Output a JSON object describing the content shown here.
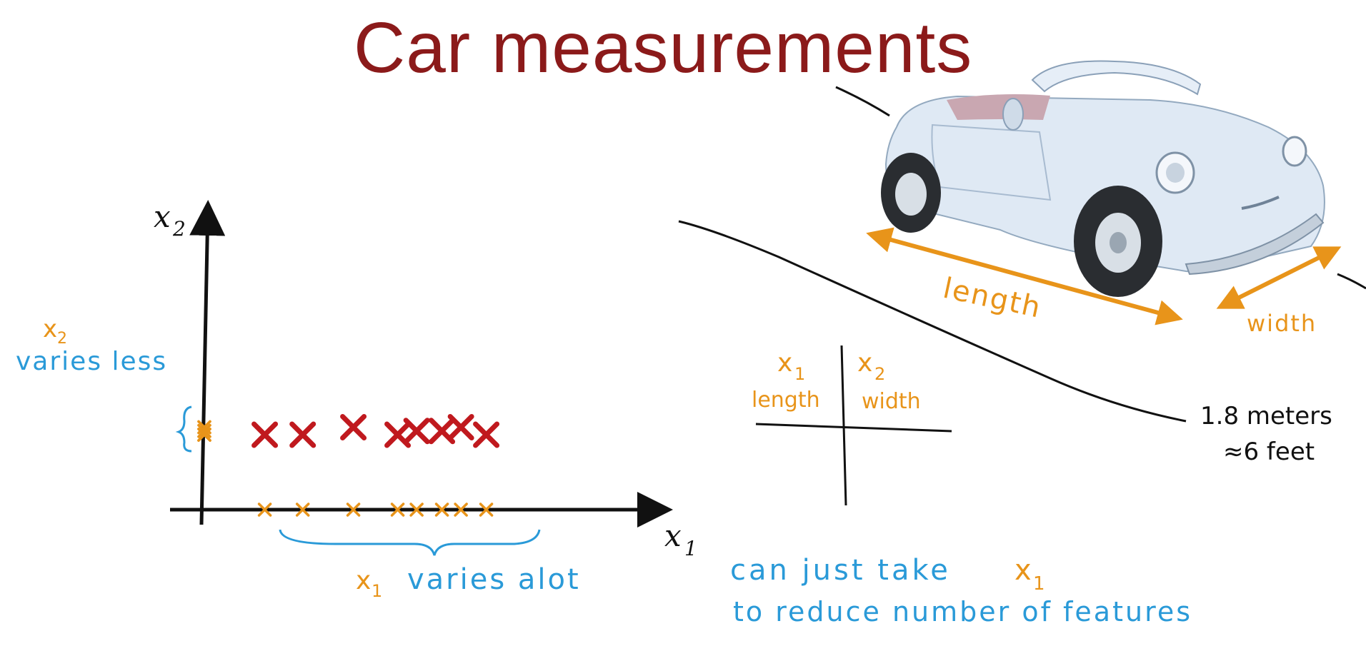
{
  "title": "Car measurements",
  "colors": {
    "title": "#8b1a1a",
    "orange": "#e8941a",
    "blue": "#2a9ad8",
    "red": "#c0191e",
    "ink": "#111111",
    "car_body": "#dfe9f4"
  },
  "plot": {
    "x_axis_label": "x",
    "x_axis_sub": "1",
    "y_axis_label": "x",
    "y_axis_sub": "2",
    "x2_note_var": "x",
    "x2_note_sub": "2",
    "x2_note_text": "varies less",
    "x1_note_var": "x",
    "x1_note_sub": "1",
    "x1_note_text": "varies alot"
  },
  "car": {
    "length_label": "length",
    "width_label": "width",
    "width_value_1": "1.8 meters",
    "width_value_2": "≈6 feet"
  },
  "feature_table": {
    "col1_var": "x",
    "col1_sub": "1",
    "col1_name": "length",
    "col2_var": "x",
    "col2_sub": "2",
    "col2_name": "width"
  },
  "conclusion": {
    "line1_prefix": "can just take",
    "line1_var": "x",
    "line1_sub": "1",
    "line2": "to reduce number of features"
  },
  "chart_data": {
    "type": "scatter",
    "xlabel": "x1",
    "ylabel": "x2",
    "points": [
      {
        "x": 1.0,
        "y": 1.0
      },
      {
        "x": 1.6,
        "y": 1.0
      },
      {
        "x": 2.4,
        "y": 1.1
      },
      {
        "x": 3.1,
        "y": 1.0
      },
      {
        "x": 3.4,
        "y": 1.05
      },
      {
        "x": 3.8,
        "y": 1.05
      },
      {
        "x": 4.1,
        "y": 1.1
      },
      {
        "x": 4.5,
        "y": 1.0
      }
    ],
    "xlim": [
      0,
      7
    ],
    "ylim": [
      0,
      4
    ]
  }
}
